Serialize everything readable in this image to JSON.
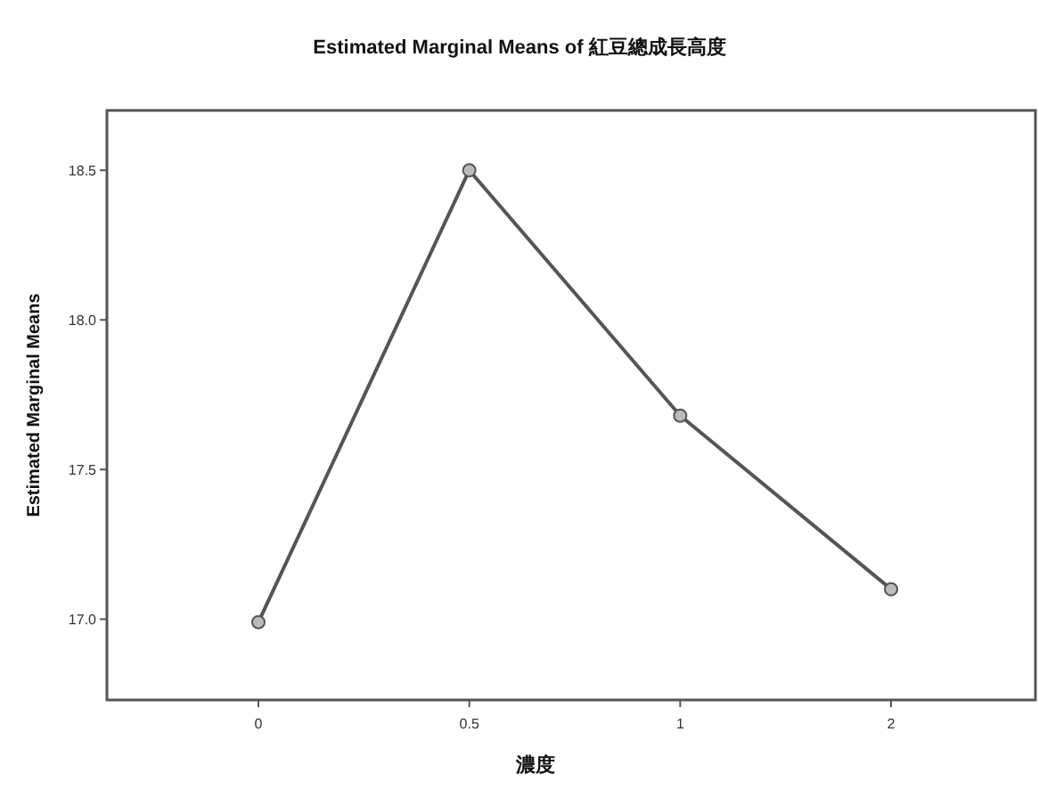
{
  "chart_data": {
    "type": "line",
    "title": "Estimated Marginal Means of 紅豆總成長高度",
    "xlabel": "濃度",
    "ylabel": "Estimated Marginal Means",
    "categories": [
      "0",
      "0.5",
      "1",
      "2"
    ],
    "series": [
      {
        "color": "#555555",
        "values": [
          16.99,
          18.5,
          17.68,
          17.1
        ]
      }
    ],
    "ylim": [
      16.73,
      18.7
    ],
    "yticks": [
      {
        "value": 17,
        "label": "17.0"
      },
      {
        "value": 17.5,
        "label": "17.5"
      },
      {
        "value": 18,
        "label": "18.0"
      },
      {
        "value": 18.5,
        "label": "18.5"
      }
    ],
    "marker": "circle",
    "line_style": "solid",
    "grid": false
  }
}
